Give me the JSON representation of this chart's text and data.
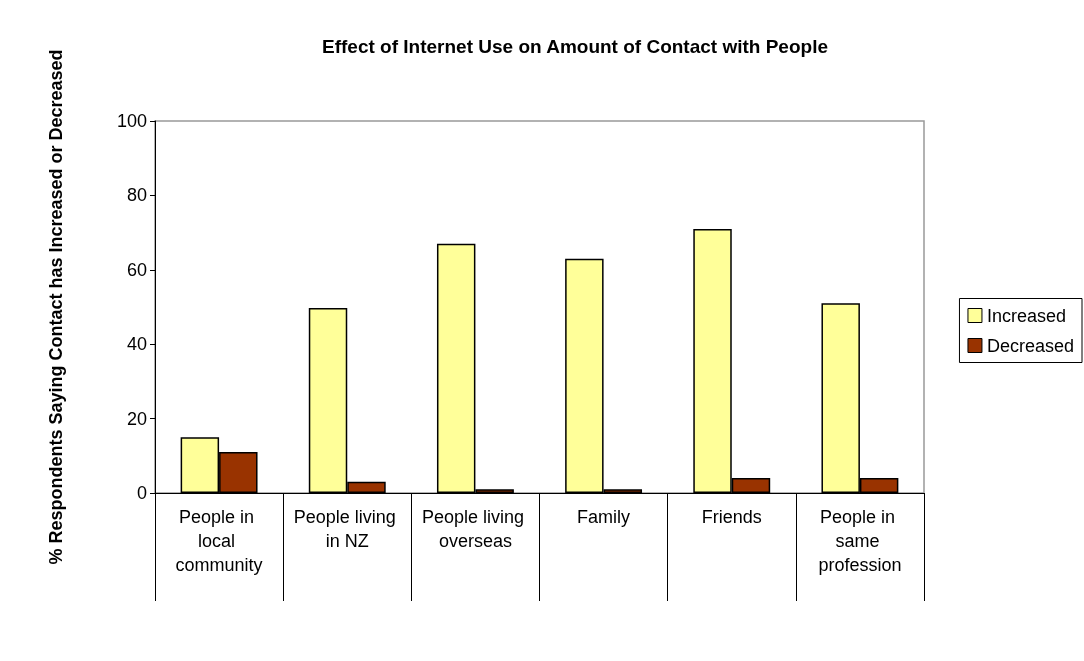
{
  "chart_data": {
    "type": "bar",
    "title": "Effect of Internet Use on Amount of Contact with People",
    "ylabel": "% Respondents Saying Contact has Increased or Decreased",
    "categories": [
      "People in local community",
      "People living in NZ",
      "People living overseas",
      "Family",
      "Friends",
      "People in same profession"
    ],
    "series": [
      {
        "name": "Increased",
        "color": "#ffff99",
        "values": [
          15,
          49.7,
          67,
          63,
          71,
          51
        ]
      },
      {
        "name": "Decreased",
        "color": "#993300",
        "values": [
          11,
          3,
          1,
          1,
          4,
          4
        ]
      }
    ],
    "ylim": [
      0,
      100
    ],
    "yticks": [
      0,
      20,
      40,
      60,
      80,
      100
    ],
    "grid": false,
    "legend": "right"
  }
}
